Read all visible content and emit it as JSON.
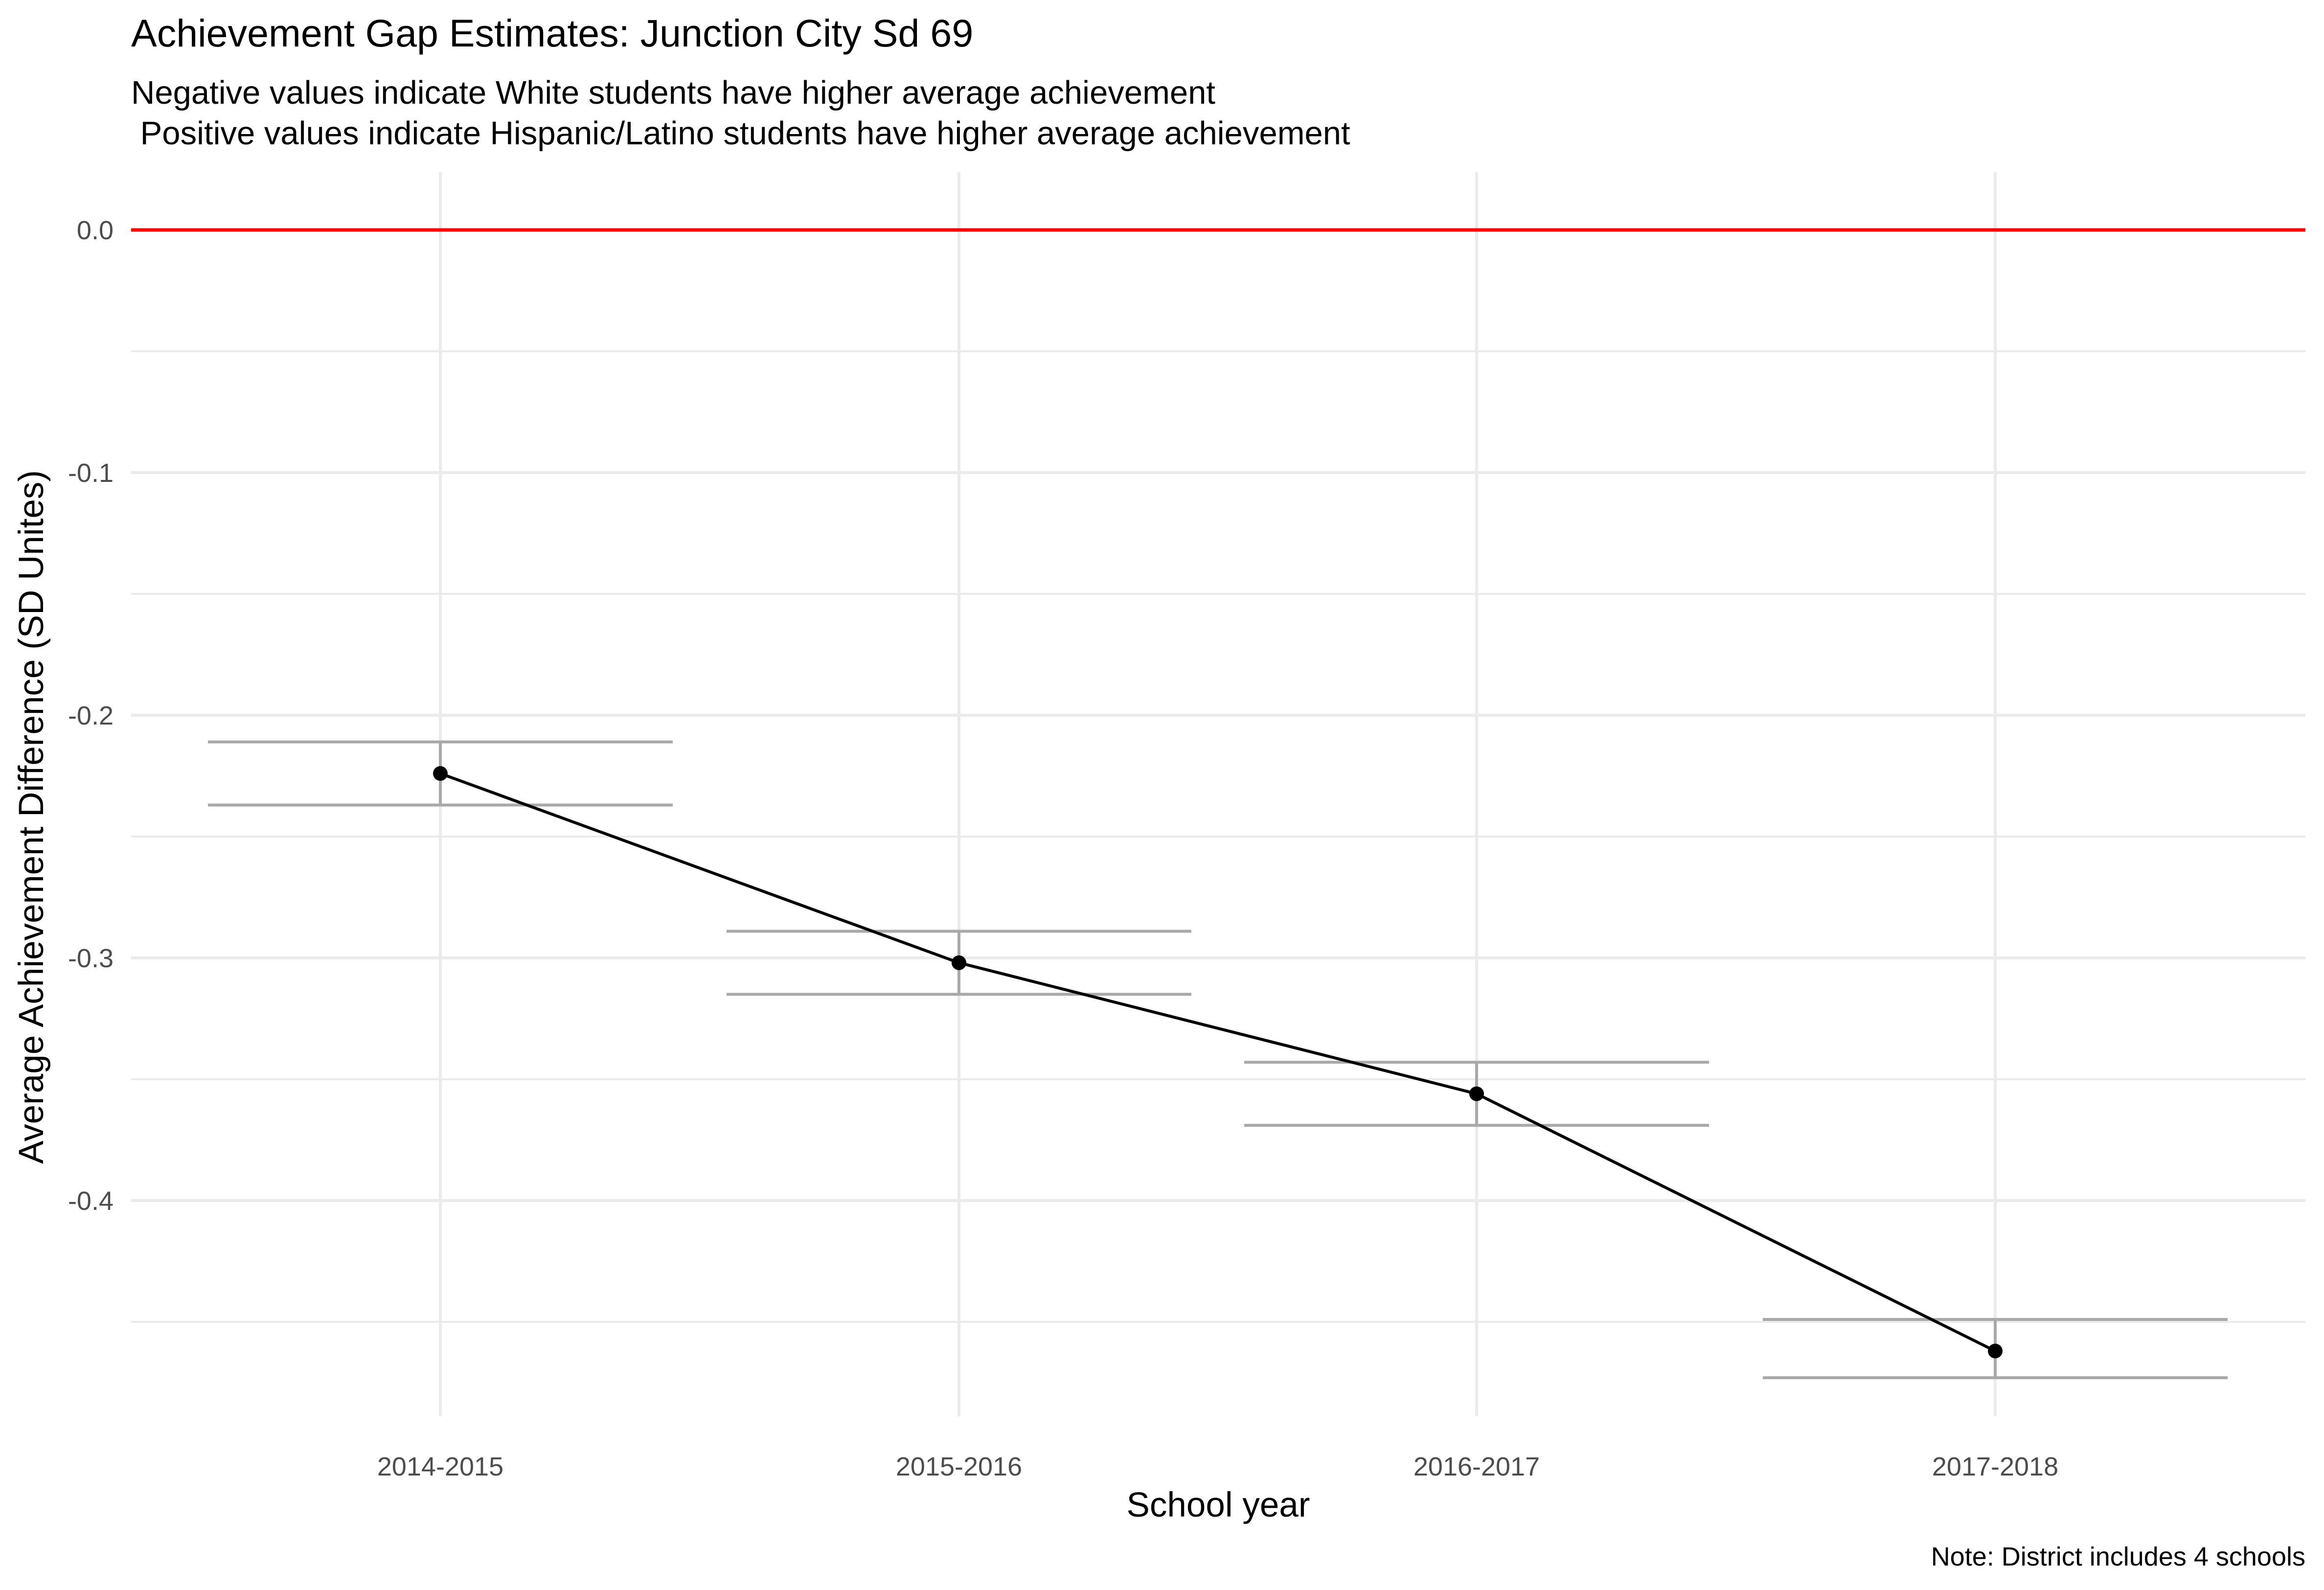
{
  "chart_data": {
    "type": "line",
    "title": "Achievement Gap Estimates: Junction City Sd 69",
    "subtitle_lines": [
      "Negative values indicate White students have higher average achievement",
      " Positive values indicate Hispanic/Latino students have higher average achievement"
    ],
    "xlabel": "School year",
    "ylabel": "Average Achievement Difference (SD Unites)",
    "caption": "Note: District includes 4 schools",
    "categories": [
      "2014-2015",
      "2015-2016",
      "2016-2017",
      "2017-2018"
    ],
    "values": [
      -0.224,
      -0.302,
      -0.356,
      -0.462
    ],
    "error_lower": [
      -0.237,
      -0.315,
      -0.369,
      -0.473
    ],
    "error_upper": [
      -0.211,
      -0.289,
      -0.343,
      -0.449
    ],
    "ylim": [
      -0.5,
      0.023
    ],
    "yticks": [
      0.0,
      -0.1,
      -0.2,
      -0.3,
      -0.4
    ],
    "ytick_labels": [
      "0.0",
      "-0.1",
      "-0.2",
      "-0.3",
      "-0.4"
    ],
    "reference_line": 0.0,
    "grid": true,
    "colors": {
      "line": "#000000",
      "point": "#000000",
      "errorbar": "#a9a9a9",
      "reference": "#ff0000",
      "grid": "#ebebeb"
    }
  }
}
